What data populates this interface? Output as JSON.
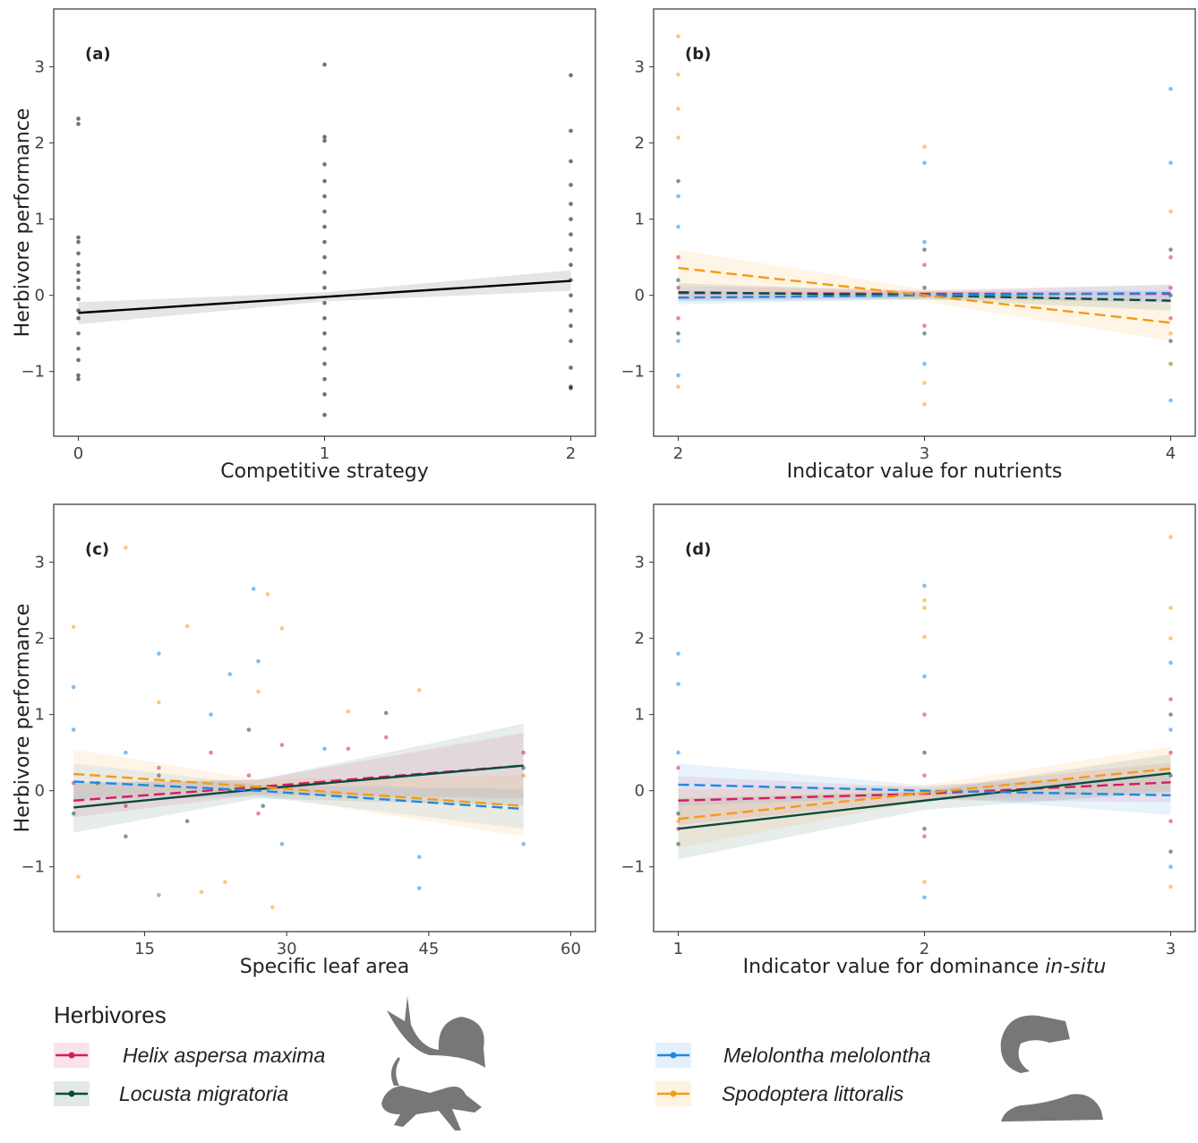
{
  "chart_data": [
    {
      "type": "line",
      "label": "(a)",
      "xlabel": "Competitive strategy",
      "ylabel": "Herbivore performance",
      "xlim": [
        -0.1,
        2.1
      ],
      "xticks": [
        0,
        1,
        2
      ],
      "ylim": [
        -1.85,
        3.76
      ],
      "yticks": [
        {
          "value": -1,
          "label": "−1"
        },
        0,
        1,
        2,
        3
      ],
      "grid": false,
      "series": [
        {
          "color": "#000000",
          "dashed": false,
          "x": [
            0,
            1,
            2
          ],
          "values": [
            -0.23,
            -0.02,
            0.19
          ],
          "lower": [
            -0.38,
            -0.08,
            0.06
          ],
          "upper": [
            -0.09,
            0.04,
            0.33
          ],
          "points_x": [
            0,
            0,
            0,
            0,
            0,
            0,
            0,
            0,
            0,
            0,
            0,
            0,
            0,
            0,
            0,
            0,
            0,
            1,
            1,
            1,
            1,
            1,
            1,
            1,
            1,
            1,
            1,
            1,
            1,
            1,
            1,
            1,
            1,
            1,
            1,
            1,
            1,
            2,
            2,
            2,
            2,
            2,
            2,
            2,
            2,
            2,
            2,
            2,
            2,
            2,
            2,
            2,
            2,
            2
          ],
          "points_y": [
            2.32,
            2.25,
            0.76,
            0.7,
            0.55,
            0.4,
            0.3,
            0.2,
            0.1,
            -0.05,
            -0.2,
            -0.3,
            -0.5,
            -0.7,
            -0.85,
            -1.05,
            -1.1,
            3.03,
            2.08,
            2.03,
            1.72,
            1.5,
            1.3,
            1.1,
            0.9,
            0.7,
            0.5,
            0.3,
            0.1,
            -0.1,
            -0.3,
            -0.5,
            -0.7,
            -0.9,
            -1.1,
            -1.3,
            -1.57,
            2.89,
            2.16,
            1.76,
            1.45,
            1.2,
            1.0,
            0.8,
            0.6,
            0.4,
            0.2,
            0,
            -0.2,
            -0.4,
            -0.6,
            -0.95,
            -1.2,
            -1.22
          ]
        }
      ]
    },
    {
      "type": "line",
      "label": "(b)",
      "xlabel": "Indicator value for nutrients",
      "legend_title": "Herbivores",
      "xlim": [
        1.9,
        4.1
      ],
      "xticks": [
        2,
        3,
        4
      ],
      "ylim": [
        -1.85,
        3.76
      ],
      "yticks": [
        {
          "value": -1,
          "label": "−1"
        },
        0,
        1,
        2,
        3
      ],
      "grid": false,
      "series": [
        {
          "name": "Helix aspersa maxima",
          "color": "#d81b60",
          "dashed": true,
          "x": [
            2,
            3,
            4
          ],
          "values": [
            0.03,
            0.02,
            0.02
          ],
          "lower": [
            -0.06,
            -0.03,
            -0.1
          ],
          "upper": [
            0.12,
            0.07,
            0.14
          ],
          "points_x": [
            2,
            2,
            2,
            3,
            3,
            3,
            4,
            4,
            4
          ],
          "points_y": [
            0.5,
            0.1,
            -0.3,
            0.4,
            0,
            -0.4,
            0.5,
            0.1,
            -0.3
          ]
        },
        {
          "name": "Locusta migratoria",
          "color": "#0b4a3c",
          "dashed": true,
          "x": [
            2,
            3,
            4
          ],
          "values": [
            0.04,
            0,
            -0.07
          ],
          "lower": [
            -0.08,
            -0.05,
            -0.2
          ],
          "upper": [
            0.16,
            0.05,
            0.06
          ],
          "points_x": [
            2,
            2,
            2,
            3,
            3,
            3,
            4,
            4,
            4
          ],
          "points_y": [
            1.5,
            0.2,
            -0.5,
            0.6,
            0.1,
            -0.5,
            0.6,
            0,
            -0.6
          ]
        },
        {
          "name": "Melolontha melolontha",
          "color": "#1e88e5",
          "dashed": true,
          "x": [
            2,
            3,
            4
          ],
          "values": [
            -0.03,
            0,
            0.03
          ],
          "lower": [
            -0.12,
            -0.05,
            -0.08
          ],
          "upper": [
            0.06,
            0.05,
            0.14
          ],
          "points_x": [
            2,
            2,
            2,
            2,
            3,
            3,
            3,
            4,
            4,
            4,
            4
          ],
          "points_y": [
            1.3,
            0.9,
            -0.6,
            -1.05,
            1.74,
            0.7,
            -0.9,
            2.71,
            1.74,
            -0.9,
            -1.38
          ]
        },
        {
          "name": "Spodoptera littoralis",
          "color": "#f59b12",
          "dashed": true,
          "x": [
            2,
            3,
            4
          ],
          "values": [
            0.36,
            0,
            -0.36
          ],
          "lower": [
            0.12,
            -0.08,
            -0.6
          ],
          "upper": [
            0.6,
            0.08,
            -0.12
          ],
          "points_x": [
            2,
            2,
            2,
            2,
            2,
            3,
            3,
            3,
            4,
            4,
            4
          ],
          "points_y": [
            3.4,
            2.9,
            2.45,
            2.07,
            -1.2,
            1.95,
            -1.15,
            -1.43,
            1.1,
            -0.5,
            -0.9
          ]
        }
      ]
    },
    {
      "type": "line",
      "label": "(c)",
      "xlabel": "Specific leaf area",
      "ylabel": "Herbivore performance",
      "xlim": [
        5.4,
        62.6
      ],
      "xticks": [
        15,
        30,
        45,
        60
      ],
      "ylim": [
        -1.85,
        3.76
      ],
      "yticks": [
        {
          "value": -1,
          "label": "−1"
        },
        0,
        1,
        2,
        3
      ],
      "grid": false,
      "series": [
        {
          "color": "#d81b60",
          "dashed": true,
          "x": [
            7.5,
            27,
            55
          ],
          "values": [
            -0.13,
            0.05,
            0.33
          ],
          "lower": [
            -0.35,
            -0.05,
            -0.1
          ],
          "upper": [
            0.09,
            0.15,
            0.76
          ],
          "points_x": [
            7.5,
            13,
            16.5,
            22,
            26,
            27,
            29.5,
            36.5,
            40.5,
            55
          ],
          "points_y": [
            0.1,
            -0.2,
            0.3,
            0.5,
            0.2,
            -0.3,
            0.6,
            0.55,
            0.7,
            0.5
          ]
        },
        {
          "color": "#0b4a3c",
          "dashed": false,
          "x": [
            7.5,
            27,
            55
          ],
          "values": [
            -0.22,
            0.02,
            0.33
          ],
          "lower": [
            -0.55,
            -0.1,
            -0.2
          ],
          "upper": [
            0.11,
            0.14,
            0.88
          ],
          "points_x": [
            7.5,
            10,
            13,
            16.5,
            19.5,
            24,
            26,
            27.5,
            33,
            40.5,
            55
          ],
          "points_y": [
            -0.3,
            0.1,
            -0.6,
            0.2,
            -0.4,
            0,
            0.8,
            -0.2,
            0.1,
            1.02,
            0.3
          ]
        },
        {
          "color": "#1e88e5",
          "dashed": true,
          "x": [
            7.5,
            27,
            55
          ],
          "values": [
            0.12,
            0.0,
            -0.24
          ],
          "lower": [
            -0.12,
            -0.08,
            -0.5
          ],
          "upper": [
            0.36,
            0.08,
            0.02
          ],
          "points_x": [
            7.5,
            7.5,
            13,
            16.5,
            16.5,
            22,
            24,
            26.5,
            27,
            29.5,
            34,
            44,
            44,
            55
          ],
          "points_y": [
            1.36,
            0.8,
            0.5,
            1.8,
            -1.37,
            1.0,
            1.53,
            2.65,
            1.7,
            -0.7,
            0.55,
            -0.87,
            -1.28,
            -0.7
          ]
        },
        {
          "color": "#f59b12",
          "dashed": true,
          "x": [
            7.5,
            27,
            55
          ],
          "values": [
            0.22,
            0.05,
            -0.2
          ],
          "lower": [
            -0.1,
            -0.05,
            -0.6
          ],
          "upper": [
            0.54,
            0.15,
            0.2
          ],
          "points_x": [
            7.5,
            8,
            13,
            16.5,
            19.5,
            21,
            23.5,
            27,
            28,
            28.5,
            29.5,
            36.5,
            44,
            55
          ],
          "points_y": [
            2.15,
            -1.13,
            3.19,
            1.16,
            2.16,
            -1.33,
            -1.2,
            1.3,
            2.58,
            -1.53,
            2.13,
            1.04,
            1.32,
            0.2
          ]
        }
      ]
    },
    {
      "type": "line",
      "label": "(d)",
      "xlabel": "Indicator value for dominance",
      "xlabel_emphasis": "in-situ",
      "xlim": [
        0.9,
        3.1
      ],
      "xticks": [
        1,
        2,
        3
      ],
      "ylim": [
        -1.85,
        3.76
      ],
      "yticks": [
        {
          "value": -1,
          "label": "−1"
        },
        0,
        1,
        2,
        3
      ],
      "grid": false,
      "series": [
        {
          "color": "#d81b60",
          "dashed": true,
          "x": [
            1,
            2,
            3
          ],
          "values": [
            -0.13,
            -0.04,
            0.11
          ],
          "lower": [
            -0.45,
            -0.12,
            -0.15
          ],
          "upper": [
            0.19,
            0.04,
            0.37
          ],
          "points_x": [
            1,
            1,
            2,
            2,
            2,
            3,
            3,
            3
          ],
          "points_y": [
            0.3,
            -0.5,
            1.0,
            0.2,
            -0.6,
            1.2,
            0.5,
            -0.4
          ]
        },
        {
          "color": "#0b4a3c",
          "dashed": false,
          "x": [
            1,
            2,
            3
          ],
          "values": [
            -0.5,
            -0.13,
            0.23
          ],
          "lower": [
            -0.9,
            -0.25,
            -0.02
          ],
          "upper": [
            -0.1,
            -0.01,
            0.48
          ],
          "points_x": [
            1,
            1,
            2,
            2,
            3,
            3,
            3
          ],
          "points_y": [
            -0.3,
            -0.7,
            0.5,
            -0.5,
            1.0,
            0.2,
            -0.8
          ]
        },
        {
          "color": "#1e88e5",
          "dashed": true,
          "x": [
            1,
            2,
            3
          ],
          "values": [
            0.08,
            0,
            -0.06
          ],
          "lower": [
            -0.2,
            -0.07,
            -0.32
          ],
          "upper": [
            0.36,
            0.07,
            0.2
          ],
          "points_x": [
            1,
            1,
            1,
            2,
            2,
            2,
            3,
            3,
            3
          ],
          "points_y": [
            1.8,
            1.4,
            0.5,
            2.69,
            1.5,
            -1.4,
            1.68,
            0.8,
            -1.0
          ]
        },
        {
          "color": "#f59b12",
          "dashed": true,
          "x": [
            1,
            2,
            3
          ],
          "values": [
            -0.37,
            -0.03,
            0.29
          ],
          "lower": [
            -0.75,
            -0.13,
            0.0
          ],
          "upper": [
            0.01,
            0.07,
            0.58
          ],
          "points_x": [
            1,
            2,
            2,
            2,
            2,
            3,
            3,
            3,
            3
          ],
          "points_y": [
            -0.4,
            2.5,
            2.4,
            2.02,
            -1.2,
            3.33,
            2.4,
            2.0,
            -1.26
          ]
        }
      ]
    }
  ]
}
